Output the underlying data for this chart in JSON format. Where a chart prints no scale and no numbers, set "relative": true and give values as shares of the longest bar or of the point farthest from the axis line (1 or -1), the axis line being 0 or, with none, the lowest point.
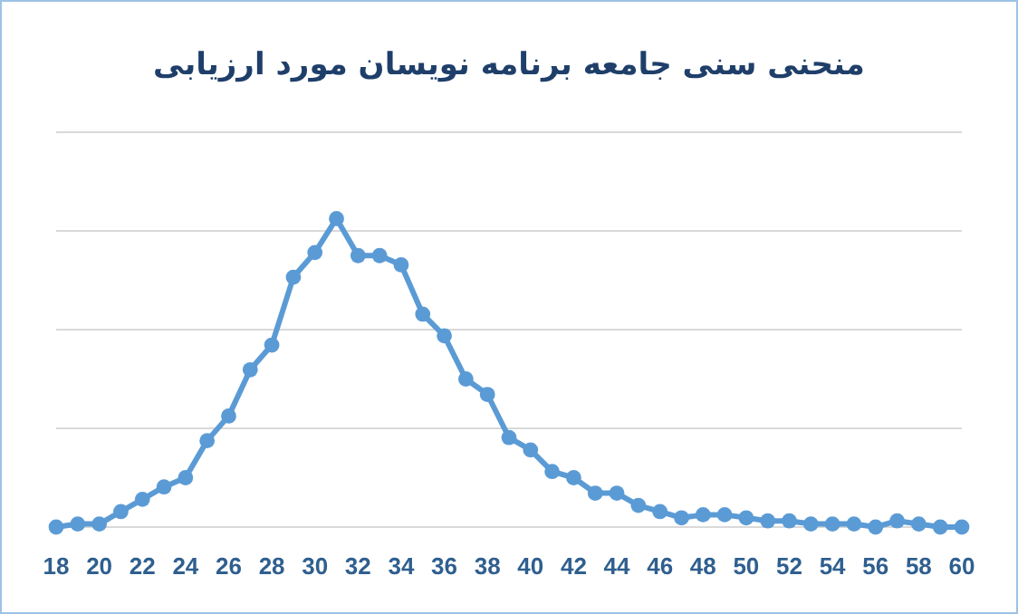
{
  "chart_data": {
    "type": "line",
    "title": "منحنی سنی جامعه برنامه نویسان مورد ارزیابی",
    "relative": true,
    "grid": "y",
    "marker": "circle",
    "line_style": "solid",
    "x": [
      18,
      19,
      20,
      21,
      22,
      23,
      24,
      25,
      26,
      27,
      28,
      29,
      30,
      31,
      32,
      33,
      34,
      35,
      36,
      37,
      38,
      39,
      40,
      41,
      42,
      43,
      44,
      45,
      46,
      47,
      48,
      49,
      50,
      51,
      52,
      53,
      54,
      55,
      56,
      57,
      58,
      59,
      60
    ],
    "xlim": [
      18,
      60
    ],
    "xticks": [
      18,
      20,
      22,
      24,
      26,
      28,
      30,
      32,
      34,
      36,
      38,
      40,
      42,
      44,
      46,
      48,
      50,
      52,
      54,
      56,
      58,
      60
    ],
    "series": [
      {
        "color": "#5b9bd5",
        "values": [
          0,
          0.01,
          0.01,
          0.05,
          0.09,
          0.13,
          0.16,
          0.28,
          0.36,
          0.51,
          0.59,
          0.81,
          0.89,
          1,
          0.88,
          0.88,
          0.85,
          0.69,
          0.62,
          0.48,
          0.43,
          0.29,
          0.25,
          0.18,
          0.16,
          0.11,
          0.11,
          0.07,
          0.05,
          0.03,
          0.04,
          0.04,
          0.03,
          0.02,
          0.02,
          0.01,
          0.01,
          0.01,
          0,
          0.02,
          0.01,
          0,
          0
        ]
      }
    ]
  }
}
